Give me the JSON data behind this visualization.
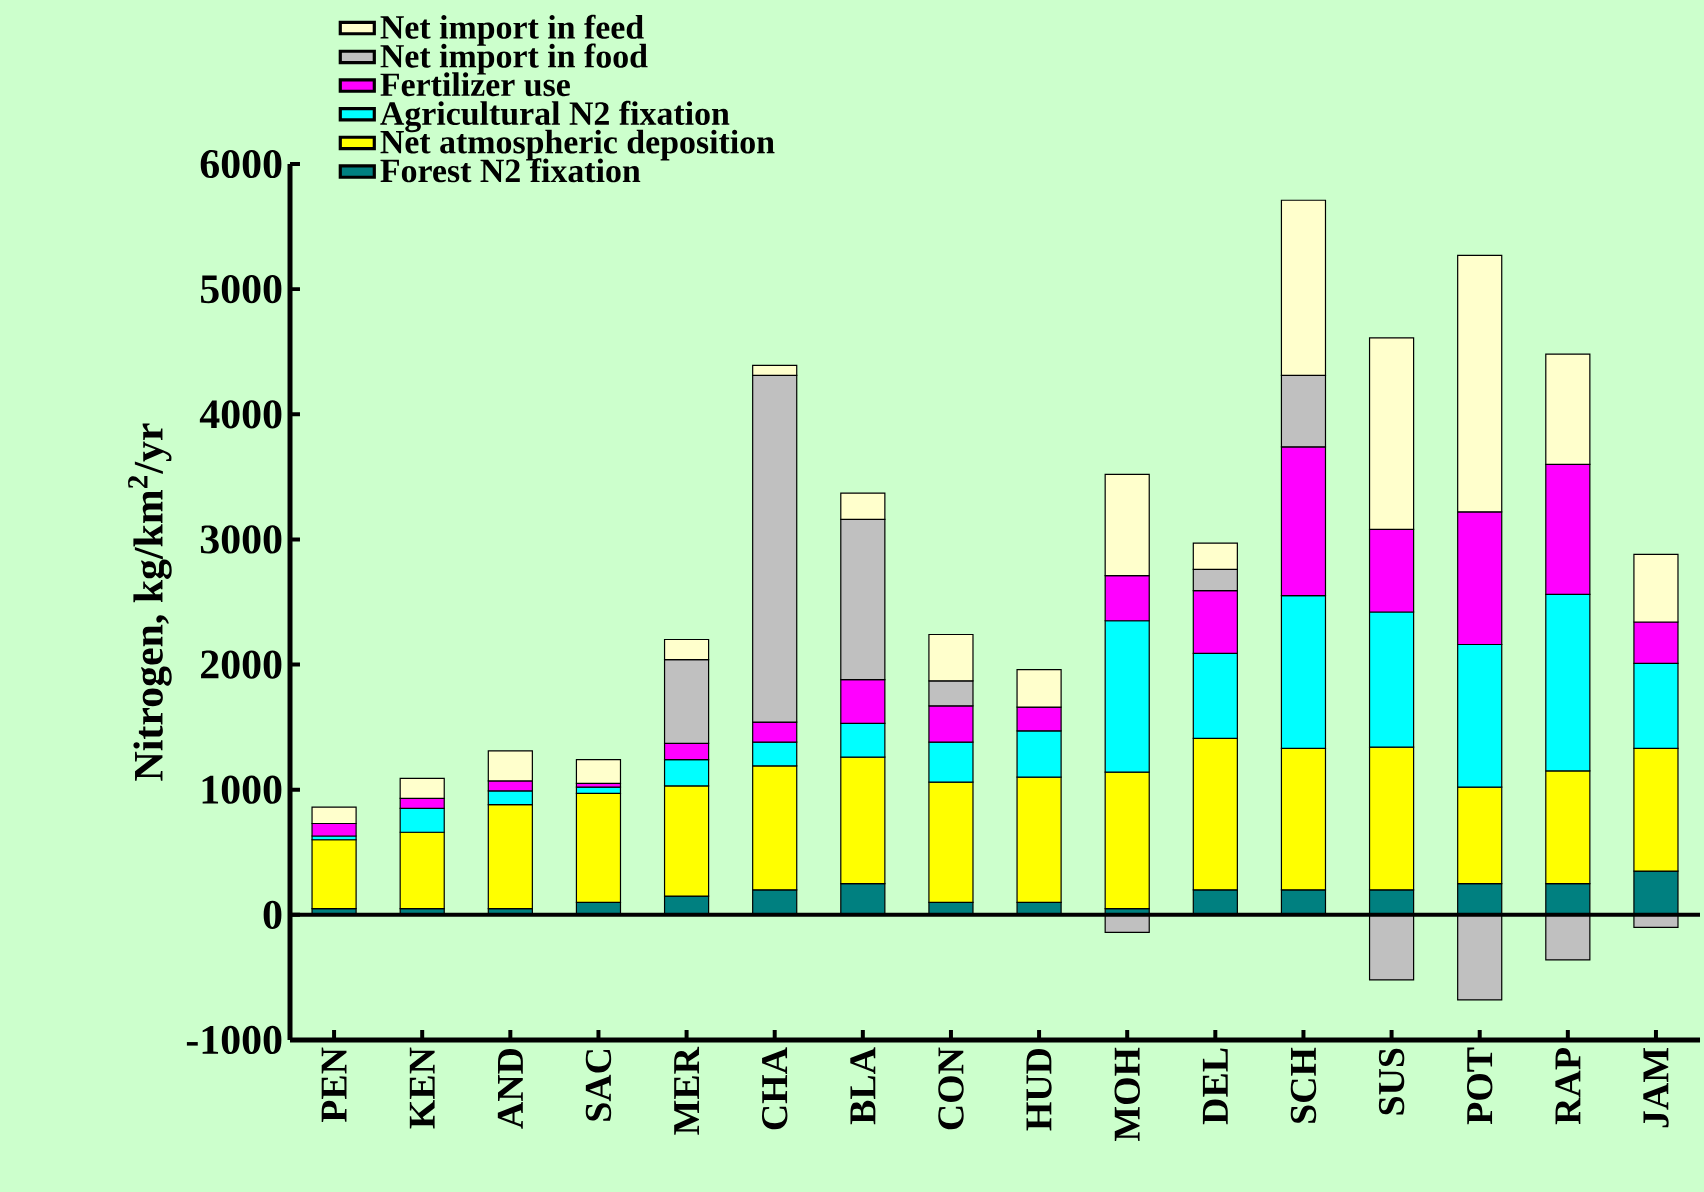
{
  "chart_data": {
    "type": "bar",
    "stacked": true,
    "ylabel": "Nitrogen, kg/km$^{2}$/yr",
    "categories": [
      "PEN",
      "KEN",
      "AND",
      "SAC",
      "MER",
      "CHA",
      "BLA",
      "CON",
      "HUD",
      "MOH",
      "DEL",
      "SCH",
      "SUS",
      "POT",
      "RAP",
      "JAM"
    ],
    "series": [
      {
        "name": "Forest N2 fixation",
        "color": "#008080",
        "values": [
          50,
          50,
          50,
          100,
          150,
          200,
          250,
          100,
          100,
          50,
          200,
          200,
          200,
          250,
          250,
          350
        ]
      },
      {
        "name": "Net atmospheric deposition",
        "color": "#ffff00",
        "values": [
          550,
          610,
          830,
          870,
          880,
          990,
          1010,
          960,
          1000,
          1090,
          1210,
          1130,
          1140,
          770,
          900,
          980
        ]
      },
      {
        "name": "Agricultural N2 fixation",
        "color": "#00ffff",
        "values": [
          30,
          190,
          110,
          50,
          210,
          190,
          270,
          320,
          370,
          1210,
          680,
          1220,
          1080,
          1140,
          1410,
          680
        ]
      },
      {
        "name": "Fertilizer use",
        "color": "#ff00ff",
        "values": [
          100,
          80,
          80,
          30,
          130,
          160,
          350,
          290,
          190,
          360,
          500,
          1190,
          660,
          1060,
          1040,
          330
        ]
      },
      {
        "name": "Net import in food",
        "color": "#c0c0c0",
        "values": [
          0,
          0,
          0,
          0,
          670,
          2770,
          1280,
          200,
          0,
          -140,
          170,
          570,
          -520,
          -680,
          -360,
          -100
        ]
      },
      {
        "name": "Net import in feed",
        "color": "#ffffcc",
        "values": [
          130,
          160,
          240,
          190,
          160,
          80,
          210,
          370,
          300,
          810,
          210,
          1400,
          1530,
          2050,
          880,
          540
        ]
      }
    ],
    "ylim": [
      -1000,
      6000
    ],
    "yticks": [
      -1000,
      0,
      1000,
      2000,
      3000,
      4000,
      5000,
      6000
    ],
    "legend": "top left"
  }
}
